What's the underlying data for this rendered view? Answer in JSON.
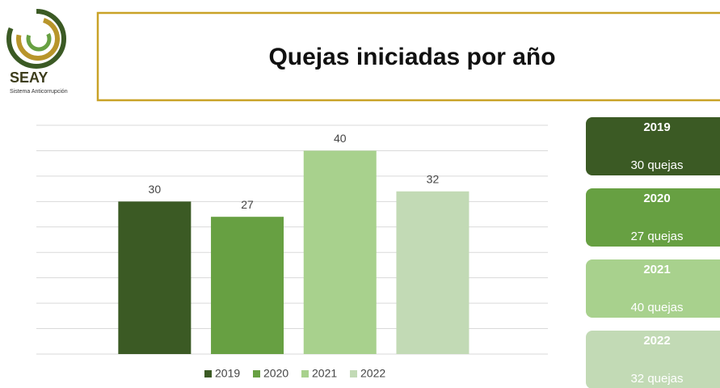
{
  "logo": {
    "name": "SEAY",
    "subtitle": "Sistema Anticorrupción"
  },
  "chart_data": {
    "type": "bar",
    "title": "Quejas iniciadas por año",
    "categories": [
      "2019",
      "2020",
      "2021",
      "2022"
    ],
    "values": [
      30,
      27,
      40,
      32
    ],
    "value_labels": [
      "30 quejas",
      "27 quejas",
      "40 quejas",
      "32 quejas"
    ],
    "colors": [
      "#3b5a24",
      "#67a042",
      "#a8d18d",
      "#c2dab5"
    ],
    "ylim": [
      0,
      45
    ],
    "yticks": [
      0,
      5,
      10,
      15,
      20,
      25,
      30,
      35,
      40,
      45
    ],
    "grid": true
  }
}
